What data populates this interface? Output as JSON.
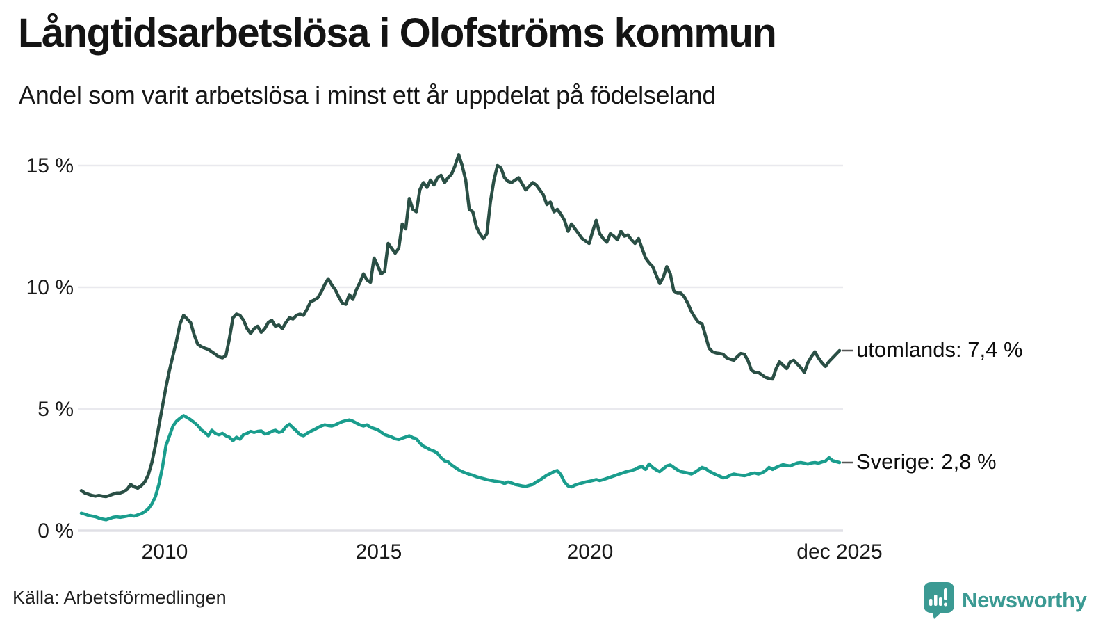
{
  "header": {
    "title": "Långtidsarbetslösa i Olofströms kommun",
    "subtitle": "Andel som varit arbetslösa i minst ett år uppdelat på födelseland"
  },
  "axes": {
    "y_ticks": [
      "15 %",
      "10 %",
      "5 %",
      "0 %"
    ],
    "x_ticks": [
      "2010",
      "2015",
      "2020",
      "dec 2025"
    ]
  },
  "series_labels": {
    "utomlands": "utomlands: 7,4 %",
    "sverige": "Sverige: 2,8 %"
  },
  "footer": {
    "source": "Källa: Arbetsförmedlingen",
    "brand": "Newsworthy"
  },
  "colors": {
    "utomlands_line": "#2a4f45",
    "sverige_line": "#1a9d8d",
    "grid": "#e9e9ee",
    "baseline": "#e0e0e6",
    "brand_teal": "#3b9a93",
    "label_dash": "#555555"
  },
  "chart_data": {
    "type": "line",
    "title": "Långtidsarbetslösa i Olofströms kommun",
    "subtitle": "Andel som varit arbetslösa i minst ett år uppdelat på födelseland",
    "x_start": "2008-01",
    "x_end": "2025-12",
    "frequency": "monthly",
    "x_tick_labels": [
      "2010",
      "2015",
      "2020",
      "dec 2025"
    ],
    "ylabel": "",
    "y_tick_labels": [
      "0 %",
      "5 %",
      "10 %",
      "15 %"
    ],
    "ylim": [
      0,
      15.5
    ],
    "grid": "horizontal",
    "legend_position": "right-end-labels",
    "source": "Arbetsförmedlingen",
    "series": [
      {
        "name": "utomlands",
        "end_label": "utomlands: 7,4 %",
        "last_value": 7.4,
        "color": "#2a4f45",
        "values": [
          1.65,
          1.55,
          1.5,
          1.45,
          1.42,
          1.45,
          1.42,
          1.4,
          1.45,
          1.5,
          1.55,
          1.55,
          1.6,
          1.7,
          1.9,
          1.8,
          1.75,
          1.85,
          2.0,
          2.3,
          2.8,
          3.5,
          4.3,
          5.1,
          5.9,
          6.6,
          7.2,
          7.8,
          8.5,
          8.85,
          8.7,
          8.55,
          8.05,
          7.66,
          7.56,
          7.5,
          7.45,
          7.35,
          7.25,
          7.15,
          7.1,
          7.2,
          7.9,
          8.75,
          8.9,
          8.85,
          8.65,
          8.3,
          8.1,
          8.3,
          8.4,
          8.15,
          8.3,
          8.55,
          8.65,
          8.4,
          8.45,
          8.3,
          8.55,
          8.75,
          8.7,
          8.85,
          8.9,
          8.85,
          9.1,
          9.4,
          9.47,
          9.56,
          9.8,
          10.1,
          10.35,
          10.1,
          9.9,
          9.6,
          9.35,
          9.3,
          9.7,
          9.5,
          9.9,
          10.2,
          10.55,
          10.3,
          10.2,
          11.2,
          10.9,
          10.55,
          10.65,
          11.8,
          11.6,
          11.4,
          11.6,
          12.6,
          12.4,
          13.65,
          13.2,
          13.1,
          14.0,
          14.3,
          14.1,
          14.4,
          14.2,
          14.5,
          14.6,
          14.3,
          14.5,
          14.65,
          15.0,
          15.45,
          15.0,
          14.4,
          13.2,
          13.1,
          12.5,
          12.2,
          12.0,
          12.2,
          13.5,
          14.4,
          15.0,
          14.9,
          14.5,
          14.35,
          14.3,
          14.4,
          14.5,
          14.25,
          14.0,
          14.15,
          14.3,
          14.2,
          14.0,
          13.8,
          13.4,
          13.5,
          13.1,
          13.2,
          13.0,
          12.75,
          12.3,
          12.6,
          12.4,
          12.2,
          12.0,
          11.9,
          11.8,
          12.3,
          12.75,
          12.2,
          12.0,
          11.85,
          12.2,
          12.1,
          11.95,
          12.3,
          12.1,
          12.15,
          11.95,
          11.8,
          12.0,
          11.6,
          11.2,
          11.0,
          10.85,
          10.5,
          10.15,
          10.4,
          10.85,
          10.55,
          9.85,
          9.76,
          9.76,
          9.6,
          9.33,
          9.0,
          8.76,
          8.56,
          8.5,
          8.0,
          7.5,
          7.35,
          7.3,
          7.28,
          7.25,
          7.1,
          7.05,
          7.0,
          7.15,
          7.28,
          7.25,
          7.0,
          6.6,
          6.5,
          6.5,
          6.4,
          6.3,
          6.25,
          6.23,
          6.66,
          6.94,
          6.8,
          6.66,
          6.94,
          7.0,
          6.85,
          6.7,
          6.5,
          6.9,
          7.15,
          7.35,
          7.1,
          6.9,
          6.75,
          6.95,
          7.1,
          7.25,
          7.4
        ]
      },
      {
        "name": "Sverige",
        "end_label": "Sverige: 2,8 %",
        "last_value": 2.8,
        "color": "#1a9d8d",
        "values": [
          0.72,
          0.68,
          0.63,
          0.6,
          0.57,
          0.52,
          0.48,
          0.45,
          0.5,
          0.55,
          0.57,
          0.55,
          0.57,
          0.6,
          0.63,
          0.6,
          0.65,
          0.7,
          0.78,
          0.9,
          1.1,
          1.4,
          1.9,
          2.6,
          3.5,
          3.9,
          4.3,
          4.5,
          4.62,
          4.73,
          4.65,
          4.56,
          4.45,
          4.32,
          4.15,
          4.04,
          3.9,
          4.13,
          4.0,
          3.94,
          4.0,
          3.9,
          3.84,
          3.7,
          3.84,
          3.76,
          3.95,
          4.0,
          4.08,
          4.04,
          4.08,
          4.1,
          3.97,
          4.0,
          4.08,
          4.13,
          4.04,
          4.08,
          4.27,
          4.37,
          4.23,
          4.1,
          3.95,
          3.9,
          4.0,
          4.08,
          4.15,
          4.23,
          4.3,
          4.35,
          4.32,
          4.3,
          4.35,
          4.42,
          4.48,
          4.52,
          4.55,
          4.5,
          4.42,
          4.35,
          4.3,
          4.35,
          4.25,
          4.2,
          4.15,
          4.05,
          3.95,
          3.9,
          3.85,
          3.78,
          3.75,
          3.8,
          3.85,
          3.9,
          3.82,
          3.78,
          3.6,
          3.47,
          3.4,
          3.32,
          3.27,
          3.18,
          3.0,
          2.87,
          2.83,
          2.7,
          2.6,
          2.5,
          2.43,
          2.37,
          2.32,
          2.28,
          2.22,
          2.18,
          2.14,
          2.1,
          2.07,
          2.04,
          2.02,
          2.0,
          1.94,
          2.0,
          1.96,
          1.9,
          1.87,
          1.84,
          1.82,
          1.86,
          1.9,
          2.0,
          2.08,
          2.18,
          2.28,
          2.35,
          2.43,
          2.47,
          2.3,
          2.0,
          1.84,
          1.8,
          1.87,
          1.92,
          1.96,
          2.0,
          2.03,
          2.06,
          2.1,
          2.06,
          2.1,
          2.15,
          2.2,
          2.25,
          2.3,
          2.35,
          2.4,
          2.44,
          2.47,
          2.52,
          2.6,
          2.64,
          2.52,
          2.74,
          2.6,
          2.5,
          2.43,
          2.55,
          2.66,
          2.7,
          2.6,
          2.5,
          2.43,
          2.4,
          2.37,
          2.33,
          2.4,
          2.5,
          2.6,
          2.55,
          2.45,
          2.37,
          2.3,
          2.24,
          2.17,
          2.2,
          2.28,
          2.33,
          2.3,
          2.28,
          2.26,
          2.3,
          2.35,
          2.37,
          2.33,
          2.38,
          2.46,
          2.6,
          2.52,
          2.6,
          2.66,
          2.71,
          2.68,
          2.66,
          2.72,
          2.78,
          2.8,
          2.77,
          2.74,
          2.78,
          2.8,
          2.77,
          2.82,
          2.86,
          3.0,
          2.88,
          2.84,
          2.8
        ]
      }
    ]
  }
}
